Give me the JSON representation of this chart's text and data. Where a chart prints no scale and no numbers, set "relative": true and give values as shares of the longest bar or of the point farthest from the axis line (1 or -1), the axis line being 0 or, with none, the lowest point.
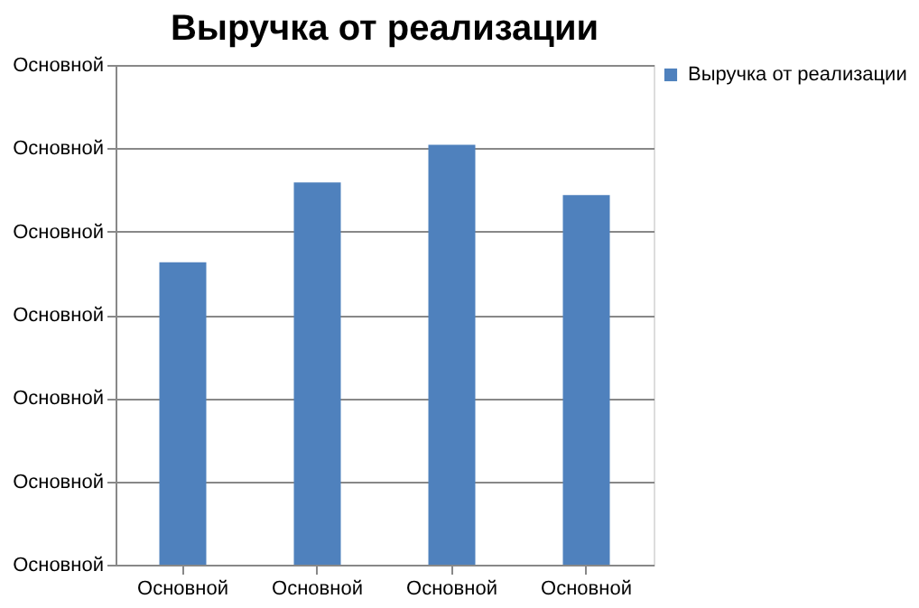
{
  "chart_data": {
    "type": "bar",
    "title": "Выручка от реализации",
    "relative": true,
    "categories": [
      "Основной",
      "Основной",
      "Основной",
      "Основной"
    ],
    "series": [
      {
        "name": "Выручка от реализации",
        "color": "#4f81bd",
        "values": [
          0.72,
          0.91,
          1,
          0.88
        ]
      }
    ],
    "annotations": [
      "Основной",
      "Основной",
      "Основной",
      "Основной",
      "Основной",
      "Основной",
      "Основной"
    ],
    "grid": "y",
    "legend": "right"
  }
}
